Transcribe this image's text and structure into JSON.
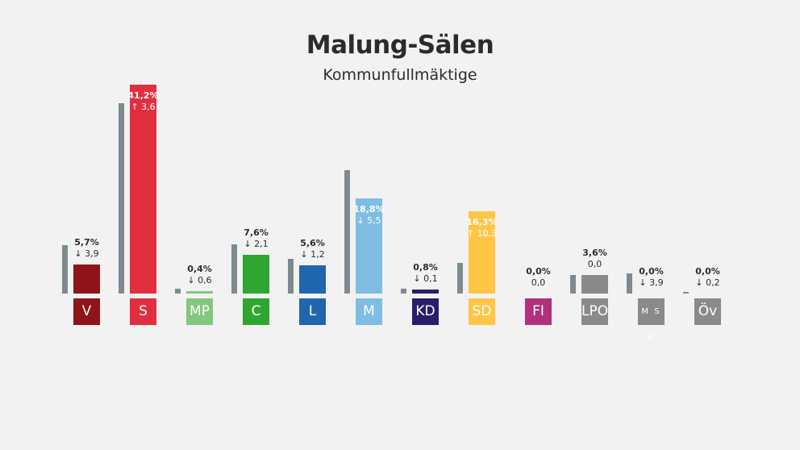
{
  "header": {
    "title": "Malung-Sälen",
    "subtitle": "Kommunfullmäktige"
  },
  "chart_data": {
    "type": "bar",
    "title": "Malung-Sälen",
    "subtitle": "Kommunfullmäktige",
    "unit": "%",
    "ylim": [
      0,
      45
    ],
    "categories": [
      "V",
      "S",
      "MP",
      "C",
      "L",
      "M",
      "KD",
      "SD",
      "FI",
      "LPO",
      "M S P",
      "Öv"
    ],
    "series": [
      {
        "values": [
          5.7,
          41.2,
          0.4,
          7.6,
          5.6,
          18.8,
          0.8,
          16.3,
          0.0,
          3.6,
          0.0,
          0.0
        ],
        "labels": [
          "5,7%",
          "41,2%",
          "0,4%",
          "7,6%",
          "5,6%",
          "18,8%",
          "0,8%",
          "16,3%",
          "0,0%",
          "3,6%",
          "0,0%",
          "0,0%"
        ]
      },
      {
        "values": [
          9.6,
          37.6,
          1.0,
          9.7,
          6.8,
          24.3,
          0.9,
          6.0,
          0.0,
          3.6,
          3.9,
          0.2
        ]
      }
    ],
    "changes": [
      {
        "dir": "down",
        "value": "3,9"
      },
      {
        "dir": "up",
        "value": "3,6"
      },
      {
        "dir": "down",
        "value": "0,6"
      },
      {
        "dir": "down",
        "value": "2,1"
      },
      {
        "dir": "down",
        "value": "1,2"
      },
      {
        "dir": "down",
        "value": "5,5"
      },
      {
        "dir": "down",
        "value": "0,1"
      },
      {
        "dir": "up",
        "value": "10,3"
      },
      {
        "dir": "none",
        "value": "0,0"
      },
      {
        "dir": "none",
        "value": "0,0"
      },
      {
        "dir": "down",
        "value": "3,9"
      },
      {
        "dir": "down",
        "value": "0,2"
      }
    ],
    "colors": [
      "#8f1419",
      "#e12f3f",
      "#83c77f",
      "#2fa631",
      "#1f66ae",
      "#7fbde3",
      "#2b1d6b",
      "#ffc545",
      "#b1307b",
      "#8a8a8a",
      "#8a8a8a",
      "#8a8a8a"
    ],
    "previous_color": "#7d8b90"
  }
}
